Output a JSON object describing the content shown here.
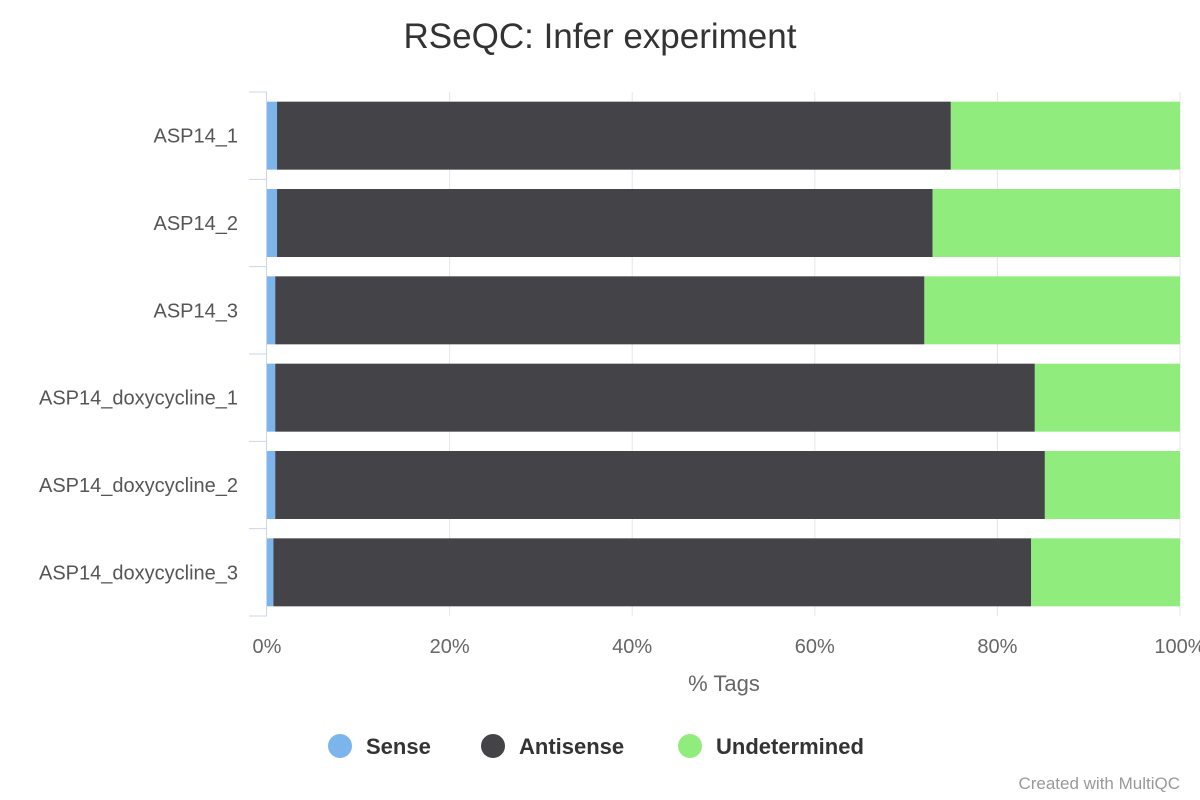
{
  "chart_data": {
    "type": "bar",
    "orientation": "horizontal",
    "stacked": true,
    "title": "RSeQC: Infer experiment",
    "xlabel": "% Tags",
    "ylabel": "",
    "xlim": [
      0,
      100
    ],
    "x_ticks": [
      "0%",
      "20%",
      "40%",
      "60%",
      "80%",
      "100%"
    ],
    "x_tick_values": [
      0,
      20,
      40,
      60,
      80,
      100
    ],
    "grid": true,
    "legend_position": "bottom-center",
    "categories": [
      "ASP14_1",
      "ASP14_2",
      "ASP14_3",
      "ASP14_doxycycline_1",
      "ASP14_doxycycline_2",
      "ASP14_doxycycline_3"
    ],
    "series": [
      {
        "name": "Sense",
        "color": "#7cb5ec",
        "values": [
          1.1,
          1.1,
          0.9,
          0.9,
          0.9,
          0.7
        ]
      },
      {
        "name": "Antisense",
        "color": "#434348",
        "values": [
          73.8,
          71.8,
          71.1,
          83.2,
          84.3,
          83.0
        ]
      },
      {
        "name": "Undetermined",
        "color": "#90ed7d",
        "values": [
          25.1,
          27.1,
          28.0,
          15.9,
          14.8,
          16.3
        ]
      }
    ],
    "credit": "Created with MultiQC"
  }
}
